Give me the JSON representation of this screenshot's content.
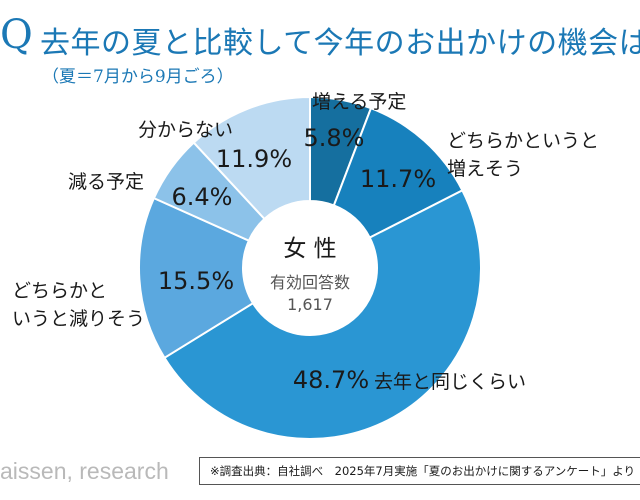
{
  "header": {
    "q_mark": "Q",
    "title": "去年の夏と比較して今年のお出かけの機会は",
    "subtitle": "（夏＝7月から9月ごろ）"
  },
  "chart_data": {
    "type": "pie",
    "variant": "donut",
    "center_title": "女 性",
    "center_caption": "有効回答数",
    "center_count": "1,617",
    "slices": [
      {
        "label": "増える予定",
        "value": 5.8,
        "value_label": "5.8%",
        "color": "#156f9f"
      },
      {
        "label": "どちらかというと増えそう",
        "value": 11.7,
        "value_label": "11.7%",
        "color": "#1781bd"
      },
      {
        "label": "去年と同じくらい",
        "value": 48.7,
        "value_label": "48.7%",
        "color": "#2a96d3"
      },
      {
        "label": "どちらかというと減りそう",
        "value": 15.5,
        "value_label": "15.5%",
        "color": "#5ba8df"
      },
      {
        "label": "減る予定",
        "value": 6.4,
        "value_label": "6.4%",
        "color": "#8cc2e9"
      },
      {
        "label": "分からない",
        "value": 11.9,
        "value_label": "11.9%",
        "color": "#bcdaf2"
      }
    ]
  },
  "labels": {
    "zoeru": "増える予定",
    "dochira_fue_1": "どちらかというと",
    "dochira_fue_2": "増えそう",
    "onaji": "去年と同じくらい",
    "dochira_gen_1": "どちらかと",
    "dochira_gen_2": "いうと減りそう",
    "heru": "減る予定",
    "wakaranai": "分からない"
  },
  "footer": {
    "logo": "aissen, research",
    "source": "※調査出典：自社調べ　2025年7月実施「夏のお出かけに関するアンケート」より"
  }
}
